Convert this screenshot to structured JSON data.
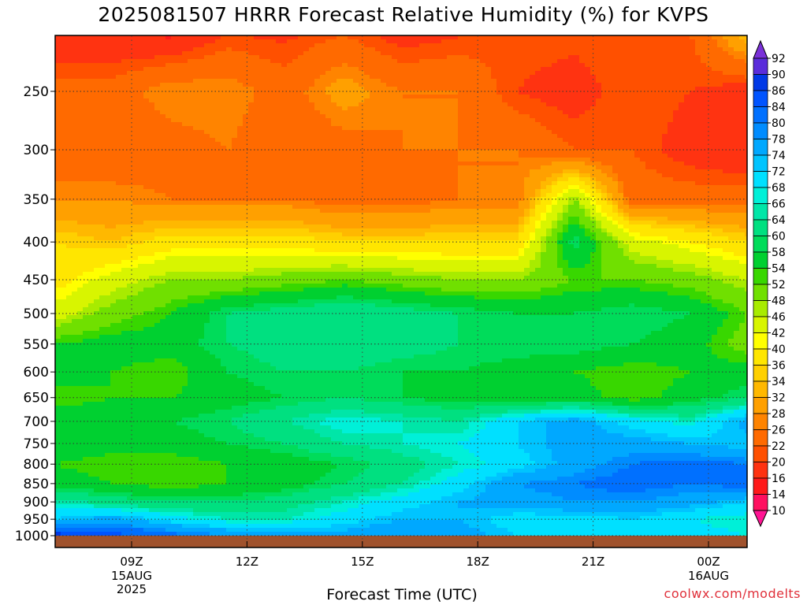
{
  "chart_data": {
    "type": "heatmap",
    "title": "2025081507 HRRR Forecast Relative Humidity (%) for KVPS",
    "xlabel": "Forecast Time (UTC)",
    "ylabel": "",
    "y_scale": "log",
    "y_ticks": [
      250,
      300,
      350,
      400,
      450,
      500,
      550,
      600,
      650,
      700,
      750,
      800,
      850,
      900,
      950,
      1000
    ],
    "x_ticks": [
      {
        "label": "09Z",
        "sub": [
          "15AUG",
          "2025"
        ]
      },
      {
        "label": "12Z",
        "sub": []
      },
      {
        "label": "15Z",
        "sub": []
      },
      {
        "label": "18Z",
        "sub": []
      },
      {
        "label": "21Z",
        "sub": []
      },
      {
        "label": "00Z",
        "sub": [
          "16AUG"
        ]
      }
    ],
    "grid": true,
    "colorbar_levels": [
      10,
      14,
      16,
      20,
      22,
      26,
      28,
      32,
      34,
      36,
      40,
      42,
      46,
      48,
      52,
      54,
      58,
      60,
      64,
      66,
      68,
      72,
      74,
      78,
      80,
      84,
      86,
      90,
      92
    ],
    "colorbar_colors": [
      "#ff1493",
      "#ff1060",
      "#ff1a1a",
      "#ff3311",
      "#ff5000",
      "#ff6a00",
      "#ff8400",
      "#ffa000",
      "#ffb800",
      "#ffd000",
      "#ffe600",
      "#ffff00",
      "#d8f500",
      "#a8eb00",
      "#70e000",
      "#38d700",
      "#00d030",
      "#00dc5a",
      "#00e080",
      "#00e6a8",
      "#00f0d8",
      "#00e0ff",
      "#00c4ff",
      "#00a8ff",
      "#008cff",
      "#0070ff",
      "#0054ff",
      "#0038e6",
      "#5a2cdb",
      "#7a30d8"
    ],
    "rh_by_level": [
      {
        "p": 200,
        "values": [
          14,
          14,
          12,
          18,
          18,
          20,
          16,
          18,
          22,
          22,
          22,
          22,
          38
        ]
      },
      {
        "p": 250,
        "values": [
          24,
          24,
          28,
          28,
          24,
          30,
          26,
          26,
          20,
          18,
          22,
          20,
          18
        ]
      },
      {
        "p": 300,
        "values": [
          22,
          22,
          24,
          26,
          22,
          24,
          26,
          26,
          26,
          22,
          22,
          18,
          16
        ]
      },
      {
        "p": 350,
        "values": [
          28,
          28,
          26,
          26,
          26,
          24,
          24,
          26,
          26,
          48,
          24,
          24,
          24
        ]
      },
      {
        "p": 400,
        "values": [
          36,
          34,
          38,
          38,
          38,
          36,
          36,
          36,
          36,
          60,
          44,
          40,
          36
        ]
      },
      {
        "p": 450,
        "values": [
          38,
          44,
          48,
          48,
          50,
          52,
          50,
          48,
          48,
          52,
          52,
          50,
          46
        ]
      },
      {
        "p": 500,
        "values": [
          44,
          50,
          54,
          60,
          62,
          64,
          62,
          60,
          58,
          58,
          60,
          58,
          52
        ]
      },
      {
        "p": 550,
        "values": [
          54,
          56,
          56,
          60,
          62,
          64,
          62,
          60,
          60,
          60,
          58,
          56,
          50
        ]
      },
      {
        "p": 600,
        "values": [
          56,
          54,
          52,
          58,
          60,
          60,
          58,
          58,
          56,
          54,
          52,
          54,
          56
        ]
      },
      {
        "p": 650,
        "values": [
          52,
          54,
          54,
          56,
          58,
          60,
          58,
          56,
          54,
          56,
          52,
          56,
          60
        ]
      },
      {
        "p": 700,
        "values": [
          58,
          56,
          58,
          60,
          64,
          68,
          66,
          64,
          72,
          76,
          70,
          66,
          76
        ]
      },
      {
        "p": 750,
        "values": [
          58,
          56,
          56,
          58,
          60,
          64,
          66,
          68,
          72,
          76,
          76,
          74,
          72
        ]
      },
      {
        "p": 800,
        "values": [
          54,
          52,
          52,
          54,
          56,
          58,
          62,
          66,
          70,
          76,
          80,
          82,
          80
        ]
      },
      {
        "p": 850,
        "values": [
          56,
          54,
          52,
          54,
          56,
          60,
          64,
          70,
          78,
          80,
          82,
          80,
          82
        ]
      },
      {
        "p": 900,
        "values": [
          66,
          62,
          60,
          60,
          62,
          66,
          70,
          74,
          76,
          78,
          78,
          76,
          72
        ]
      },
      {
        "p": 950,
        "values": [
          72,
          76,
          70,
          66,
          66,
          70,
          74,
          74,
          70,
          70,
          72,
          68,
          66
        ]
      },
      {
        "p": 1000,
        "values": [
          88,
          86,
          82,
          78,
          76,
          76,
          78,
          76,
          72,
          70,
          70,
          70,
          68
        ]
      }
    ]
  },
  "credit": "coolwx.com/modelts"
}
